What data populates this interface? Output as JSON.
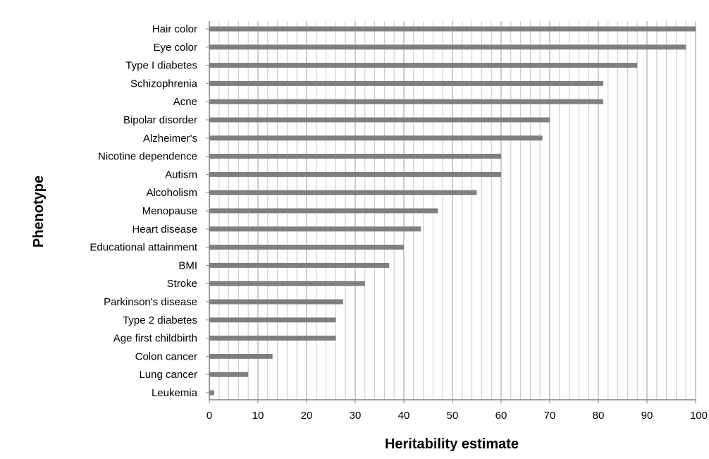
{
  "chart_data": {
    "type": "bar",
    "orientation": "horizontal",
    "title": "",
    "xlabel": "Heritability estimate",
    "ylabel": "Phenotype",
    "xlim": [
      0,
      100
    ],
    "x_ticks": [
      0,
      10,
      20,
      30,
      40,
      50,
      60,
      70,
      80,
      90,
      100
    ],
    "minor_grid_step": 2,
    "grid": true,
    "bar_color": "#7f7f7f",
    "categories": [
      "Hair color",
      "Eye color",
      "Type I diabetes",
      "Schizophrenia",
      "Acne",
      "Bipolar disorder",
      "Alzheimer's",
      "Nicotine dependence",
      "Autism",
      "Alcoholism",
      "Menopause",
      "Heart disease",
      "Educational attainment",
      "BMI",
      "Stroke",
      "Parkinson's disease",
      "Type 2 diabetes",
      "Age first childbirth",
      "Colon cancer",
      "Lung cancer",
      "Leukemia"
    ],
    "values": [
      100,
      98,
      88,
      81,
      81,
      70,
      68.5,
      60,
      60,
      55,
      47,
      43.5,
      40,
      37,
      32,
      27.5,
      26,
      26,
      13,
      8,
      1
    ]
  }
}
